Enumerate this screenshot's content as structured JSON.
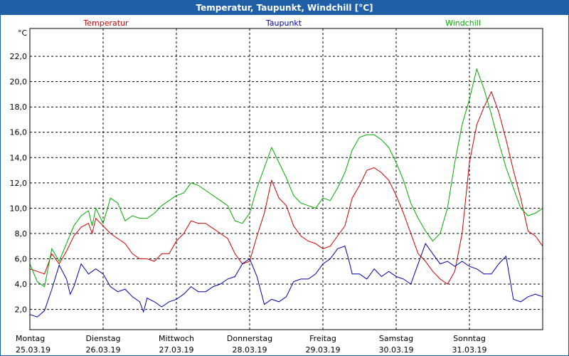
{
  "window": {
    "title": "Temperatur, Taupunkt, Windchill [°C]"
  },
  "colors": {
    "title_bar": "#1f5fa8",
    "temperatur": "#cc0000",
    "taupunkt": "#0000aa",
    "windchill": "#00aa00",
    "grid": "#000000"
  },
  "chart_data": {
    "type": "line",
    "ylabel": "°C",
    "ylim": [
      0.4,
      24.2
    ],
    "yticks": [
      "2,0",
      "4,0",
      "6,0",
      "8,0",
      "10,0",
      "12,0",
      "14,0",
      "16,0",
      "18,0",
      "20,0",
      "22,0"
    ],
    "ytick_values": [
      2,
      4,
      6,
      8,
      10,
      12,
      14,
      16,
      18,
      20,
      22
    ],
    "xlim": [
      0,
      7
    ],
    "x_unit": "days since Montag 25.03.19 00:00",
    "days": [
      {
        "name": "Montag",
        "date": "25.03.19"
      },
      {
        "name": "Dienstag",
        "date": "26.03.19"
      },
      {
        "name": "Mittwoch",
        "date": "27.03.19"
      },
      {
        "name": "Donnerstag",
        "date": "28.03.19"
      },
      {
        "name": "Freitag",
        "date": "29.03.19"
      },
      {
        "name": "Samstag",
        "date": "30.03.19"
      },
      {
        "name": "Sonntag",
        "date": "31.03.19"
      }
    ],
    "grid": true,
    "legend": "top",
    "series": [
      {
        "name": "Temperatur",
        "key": "temperatur",
        "points": [
          [
            0,
            5.2
          ],
          [
            0.1,
            5.0
          ],
          [
            0.2,
            4.8
          ],
          [
            0.3,
            6.4
          ],
          [
            0.4,
            5.6
          ],
          [
            0.5,
            6.6
          ],
          [
            0.6,
            7.8
          ],
          [
            0.7,
            8.5
          ],
          [
            0.8,
            8.8
          ],
          [
            0.85,
            8.0
          ],
          [
            0.9,
            9.2
          ],
          [
            1.0,
            8.6
          ],
          [
            1.1,
            8.0
          ],
          [
            1.2,
            7.6
          ],
          [
            1.3,
            7.2
          ],
          [
            1.4,
            6.4
          ],
          [
            1.5,
            6.0
          ],
          [
            1.6,
            6.0
          ],
          [
            1.7,
            5.8
          ],
          [
            1.8,
            6.4
          ],
          [
            1.9,
            6.4
          ],
          [
            2.0,
            7.4
          ],
          [
            2.1,
            8.0
          ],
          [
            2.2,
            9.0
          ],
          [
            2.3,
            8.8
          ],
          [
            2.4,
            8.8
          ],
          [
            2.5,
            8.4
          ],
          [
            2.6,
            8.0
          ],
          [
            2.7,
            7.6
          ],
          [
            2.8,
            6.4
          ],
          [
            2.9,
            5.6
          ],
          [
            3.0,
            5.8
          ],
          [
            3.1,
            7.8
          ],
          [
            3.2,
            9.6
          ],
          [
            3.3,
            12.2
          ],
          [
            3.4,
            10.8
          ],
          [
            3.5,
            10.2
          ],
          [
            3.6,
            8.6
          ],
          [
            3.7,
            7.8
          ],
          [
            3.8,
            7.4
          ],
          [
            3.9,
            7.2
          ],
          [
            4.0,
            6.8
          ],
          [
            4.1,
            7.0
          ],
          [
            4.2,
            7.8
          ],
          [
            4.3,
            8.6
          ],
          [
            4.4,
            10.8
          ],
          [
            4.5,
            11.8
          ],
          [
            4.6,
            13.0
          ],
          [
            4.7,
            13.2
          ],
          [
            4.8,
            12.8
          ],
          [
            4.9,
            12.2
          ],
          [
            5.0,
            11.0
          ],
          [
            5.1,
            9.6
          ],
          [
            5.2,
            8.0
          ],
          [
            5.3,
            6.4
          ],
          [
            5.4,
            5.8
          ],
          [
            5.5,
            5.0
          ],
          [
            5.6,
            4.4
          ],
          [
            5.7,
            4.0
          ],
          [
            5.8,
            5.0
          ],
          [
            5.9,
            8.0
          ],
          [
            6.0,
            13.6
          ],
          [
            6.1,
            16.6
          ],
          [
            6.2,
            18.0
          ],
          [
            6.3,
            19.2
          ],
          [
            6.4,
            17.6
          ],
          [
            6.5,
            15.4
          ],
          [
            6.6,
            13.0
          ],
          [
            6.7,
            10.8
          ],
          [
            6.8,
            8.2
          ],
          [
            6.9,
            7.8
          ],
          [
            7.0,
            7.0
          ]
        ]
      },
      {
        "name": "Taupunkt",
        "key": "taupunkt",
        "points": [
          [
            0,
            1.6
          ],
          [
            0.1,
            1.4
          ],
          [
            0.2,
            1.9
          ],
          [
            0.3,
            3.6
          ],
          [
            0.4,
            5.5
          ],
          [
            0.5,
            4.4
          ],
          [
            0.55,
            3.2
          ],
          [
            0.6,
            3.8
          ],
          [
            0.7,
            5.6
          ],
          [
            0.8,
            4.8
          ],
          [
            0.9,
            5.2
          ],
          [
            1.0,
            4.8
          ],
          [
            1.1,
            3.8
          ],
          [
            1.2,
            3.4
          ],
          [
            1.3,
            3.6
          ],
          [
            1.4,
            3.0
          ],
          [
            1.5,
            2.6
          ],
          [
            1.55,
            1.8
          ],
          [
            1.6,
            2.9
          ],
          [
            1.7,
            2.6
          ],
          [
            1.8,
            2.2
          ],
          [
            1.9,
            2.6
          ],
          [
            2.0,
            2.8
          ],
          [
            2.1,
            3.2
          ],
          [
            2.2,
            3.8
          ],
          [
            2.3,
            3.4
          ],
          [
            2.4,
            3.4
          ],
          [
            2.5,
            3.8
          ],
          [
            2.6,
            4.0
          ],
          [
            2.7,
            4.4
          ],
          [
            2.8,
            4.6
          ],
          [
            2.9,
            5.6
          ],
          [
            3.0,
            6.0
          ],
          [
            3.1,
            4.6
          ],
          [
            3.2,
            2.4
          ],
          [
            3.3,
            2.8
          ],
          [
            3.4,
            2.6
          ],
          [
            3.5,
            3.0
          ],
          [
            3.6,
            4.2
          ],
          [
            3.7,
            4.4
          ],
          [
            3.8,
            4.4
          ],
          [
            3.9,
            4.8
          ],
          [
            4.0,
            5.6
          ],
          [
            4.1,
            6.0
          ],
          [
            4.2,
            6.8
          ],
          [
            4.3,
            7.0
          ],
          [
            4.35,
            6.0
          ],
          [
            4.4,
            4.8
          ],
          [
            4.5,
            4.8
          ],
          [
            4.6,
            4.4
          ],
          [
            4.7,
            5.2
          ],
          [
            4.8,
            4.6
          ],
          [
            4.9,
            5.0
          ],
          [
            5.0,
            4.6
          ],
          [
            5.1,
            4.4
          ],
          [
            5.2,
            4.0
          ],
          [
            5.3,
            5.6
          ],
          [
            5.4,
            7.2
          ],
          [
            5.5,
            6.4
          ],
          [
            5.6,
            5.6
          ],
          [
            5.7,
            5.8
          ],
          [
            5.8,
            5.4
          ],
          [
            5.9,
            5.8
          ],
          [
            6.0,
            5.4
          ],
          [
            6.1,
            5.2
          ],
          [
            6.2,
            4.8
          ],
          [
            6.3,
            4.8
          ],
          [
            6.4,
            5.6
          ],
          [
            6.5,
            6.2
          ],
          [
            6.6,
            2.8
          ],
          [
            6.7,
            2.6
          ],
          [
            6.8,
            3.0
          ],
          [
            6.9,
            3.2
          ],
          [
            7.0,
            3.0
          ]
        ]
      },
      {
        "name": "Windchill",
        "key": "windchill",
        "points": [
          [
            0,
            5.6
          ],
          [
            0.1,
            4.2
          ],
          [
            0.2,
            3.8
          ],
          [
            0.3,
            6.8
          ],
          [
            0.4,
            5.8
          ],
          [
            0.5,
            7.2
          ],
          [
            0.6,
            8.6
          ],
          [
            0.7,
            9.4
          ],
          [
            0.8,
            9.8
          ],
          [
            0.85,
            8.6
          ],
          [
            0.9,
            10.0
          ],
          [
            1.0,
            8.8
          ],
          [
            1.1,
            10.8
          ],
          [
            1.2,
            10.4
          ],
          [
            1.3,
            9.0
          ],
          [
            1.4,
            9.4
          ],
          [
            1.5,
            9.2
          ],
          [
            1.6,
            9.2
          ],
          [
            1.7,
            9.6
          ],
          [
            1.8,
            10.2
          ],
          [
            1.9,
            10.6
          ],
          [
            2.0,
            11.0
          ],
          [
            2.1,
            11.2
          ],
          [
            2.2,
            12.0
          ],
          [
            2.3,
            11.8
          ],
          [
            2.4,
            11.4
          ],
          [
            2.5,
            11.0
          ],
          [
            2.6,
            10.6
          ],
          [
            2.7,
            10.2
          ],
          [
            2.8,
            9.0
          ],
          [
            2.9,
            8.8
          ],
          [
            3.0,
            9.6
          ],
          [
            3.1,
            11.6
          ],
          [
            3.2,
            13.2
          ],
          [
            3.3,
            14.8
          ],
          [
            3.4,
            13.6
          ],
          [
            3.5,
            12.4
          ],
          [
            3.6,
            11.0
          ],
          [
            3.7,
            10.4
          ],
          [
            3.8,
            10.2
          ],
          [
            3.9,
            10.0
          ],
          [
            4.0,
            10.8
          ],
          [
            4.1,
            10.6
          ],
          [
            4.2,
            11.6
          ],
          [
            4.3,
            12.8
          ],
          [
            4.4,
            14.6
          ],
          [
            4.5,
            15.6
          ],
          [
            4.6,
            15.8
          ],
          [
            4.7,
            15.8
          ],
          [
            4.8,
            15.4
          ],
          [
            4.9,
            14.8
          ],
          [
            5.0,
            13.6
          ],
          [
            5.1,
            12.2
          ],
          [
            5.2,
            10.4
          ],
          [
            5.3,
            9.2
          ],
          [
            5.4,
            8.2
          ],
          [
            5.5,
            7.4
          ],
          [
            5.6,
            8.0
          ],
          [
            5.7,
            10.0
          ],
          [
            5.8,
            13.6
          ],
          [
            5.9,
            16.6
          ],
          [
            6.0,
            18.6
          ],
          [
            6.1,
            21.0
          ],
          [
            6.2,
            19.4
          ],
          [
            6.3,
            17.4
          ],
          [
            6.4,
            15.2
          ],
          [
            6.5,
            13.2
          ],
          [
            6.6,
            11.6
          ],
          [
            6.7,
            10.0
          ],
          [
            6.8,
            9.4
          ],
          [
            6.9,
            9.6
          ],
          [
            7.0,
            10.0
          ]
        ]
      }
    ]
  }
}
